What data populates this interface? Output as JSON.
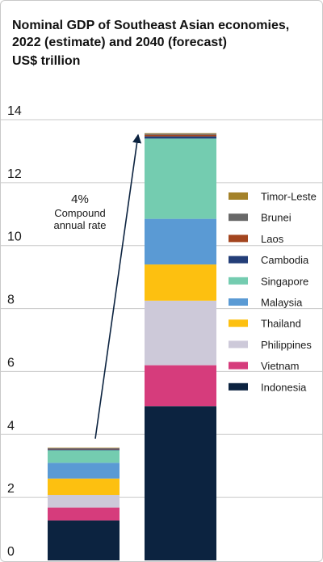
{
  "chart_data": {
    "type": "bar",
    "stacked": true,
    "title": "Nominal GDP of Southeast Asian economies, 2022 (estimate) and 2040 (forecast)",
    "subtitle": "US$ trillion",
    "xlabel": "",
    "ylabel": "",
    "categories": [
      "2022",
      "2040"
    ],
    "show_category_labels": false,
    "ylim": [
      0,
      14
    ],
    "yticks": [
      "0",
      "2",
      "4",
      "6",
      "8",
      "10",
      "12",
      "14"
    ],
    "grid": true,
    "legend_position": "right",
    "series": [
      {
        "name": "Indonesia",
        "color": "#0c2340",
        "values": [
          1.27,
          4.9
        ]
      },
      {
        "name": "Vietnam",
        "color": "#d63c7c",
        "values": [
          0.41,
          1.3
        ]
      },
      {
        "name": "Philippines",
        "color": "#cdc9d9",
        "values": [
          0.4,
          2.05
        ]
      },
      {
        "name": "Thailand",
        "color": "#fdc010",
        "values": [
          0.52,
          1.15
        ]
      },
      {
        "name": "Malaysia",
        "color": "#5a9ad4",
        "values": [
          0.5,
          1.45
        ]
      },
      {
        "name": "Singapore",
        "color": "#74ccb0",
        "values": [
          0.4,
          2.55
        ]
      },
      {
        "name": "Cambodia",
        "color": "#233e78",
        "values": [
          0.03,
          0.07
        ]
      },
      {
        "name": "Laos",
        "color": "#a3451f",
        "values": [
          0.02,
          0.05
        ]
      },
      {
        "name": "Brunei",
        "color": "#686868",
        "values": [
          0.02,
          0.03
        ]
      },
      {
        "name": "Timor-Leste",
        "color": "#a4822a",
        "values": [
          0.01,
          0.02
        ]
      }
    ],
    "annotation": {
      "value": "4%",
      "text_lines": [
        "Compound",
        "annual rate"
      ]
    }
  }
}
